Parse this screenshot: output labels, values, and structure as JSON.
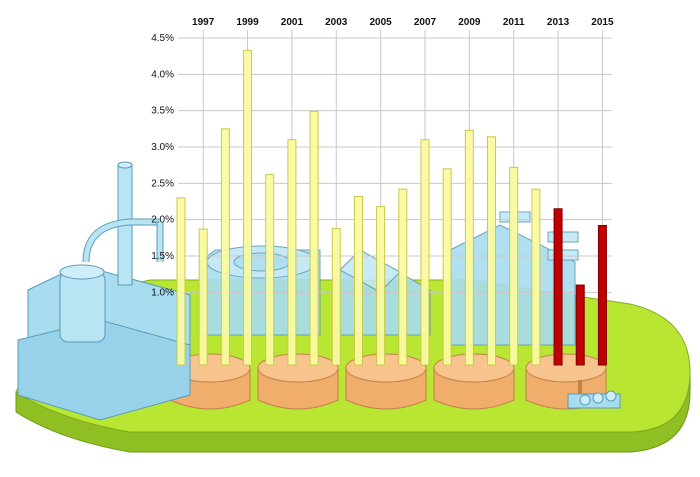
{
  "chart_data": {
    "type": "bar",
    "title": "",
    "xlabel": "",
    "ylabel": "",
    "x_axis_position": "top",
    "x_tick_labels": [
      "1997",
      "1999",
      "2001",
      "2003",
      "2005",
      "2007",
      "2009",
      "2011",
      "2013",
      "2015"
    ],
    "y_tick_labels": [
      "1.0%",
      "1.5%",
      "2.0%",
      "2.5%",
      "3.0%",
      "3.5%",
      "4.0%",
      "4.5%"
    ],
    "ylim": [
      0,
      4.5
    ],
    "y_unit": "%",
    "grid": true,
    "legend": "none",
    "background": "illustration of an industrial plant with tanks, pipes and buildings on a green platform",
    "series": [
      {
        "values": [
          {
            "year": 1996,
            "value": 2.3
          },
          {
            "year": 1997,
            "value": 1.87
          },
          {
            "year": 1998,
            "value": 3.25
          },
          {
            "year": 1999,
            "value": 4.33
          },
          {
            "year": 2000,
            "value": 2.62
          },
          {
            "year": 2001,
            "value": 3.1
          },
          {
            "year": 2002,
            "value": 3.49
          },
          {
            "year": 2003,
            "value": 1.88
          },
          {
            "year": 2004,
            "value": 2.32
          },
          {
            "year": 2005,
            "value": 2.18
          },
          {
            "year": 2006,
            "value": 2.42
          },
          {
            "year": 2007,
            "value": 3.1
          },
          {
            "year": 2008,
            "value": 2.7
          },
          {
            "year": 2009,
            "value": 3.23
          },
          {
            "year": 2010,
            "value": 3.14
          },
          {
            "year": 2011,
            "value": 2.72
          },
          {
            "year": 2012,
            "value": 2.42
          }
        ],
        "color": "#fbfba0"
      },
      {
        "values": [
          {
            "year": 2013,
            "value": 2.15
          },
          {
            "year": 2014,
            "value": 1.1
          },
          {
            "year": 2015,
            "value": 1.92
          }
        ],
        "color": "#c20000"
      }
    ],
    "colors": {
      "grid": "#c8c8c8",
      "bar_stroke_yellow": "#c9c94a",
      "bar_stroke_red": "#7a0000",
      "platform": "#b8e632",
      "platform_side": "#8fbf22",
      "building": "#a8dcef",
      "building_stroke": "#5a9cb8",
      "tank": "#f7c48e",
      "tank_stroke": "#c28446"
    }
  }
}
